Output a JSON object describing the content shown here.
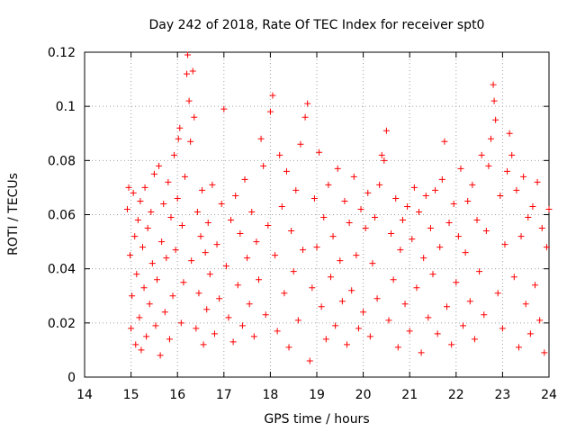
{
  "chart_data": {
    "type": "scatter",
    "title": "Day 242 of 2018, Rate Of TEC Index for receiver spt0",
    "xlabel": "GPS time / hours",
    "ylabel": "ROTI / TECUs",
    "xlim": [
      14,
      24
    ],
    "ylim": [
      0,
      0.12
    ],
    "x_ticks": [
      14,
      15,
      16,
      17,
      18,
      19,
      20,
      21,
      22,
      23,
      24
    ],
    "x_tick_labels": [
      "14",
      "15",
      "16",
      "17",
      "18",
      "19",
      "20",
      "21",
      "22",
      "23",
      "24"
    ],
    "y_ticks": [
      0,
      0.02,
      0.04,
      0.06,
      0.08,
      0.1,
      0.12
    ],
    "y_tick_labels": [
      "0",
      "0.02",
      "0.04",
      "0.06",
      "0.08",
      "0.1",
      "0.12"
    ],
    "grid": true,
    "marker": "+",
    "series": [
      {
        "name": "ROTI",
        "color": "#ff0000",
        "points": [
          [
            14.92,
            0.062
          ],
          [
            14.95,
            0.07
          ],
          [
            14.98,
            0.045
          ],
          [
            15.0,
            0.018
          ],
          [
            15.02,
            0.03
          ],
          [
            15.05,
            0.068
          ],
          [
            15.08,
            0.052
          ],
          [
            15.1,
            0.012
          ],
          [
            15.12,
            0.038
          ],
          [
            15.15,
            0.058
          ],
          [
            15.18,
            0.022
          ],
          [
            15.2,
            0.065
          ],
          [
            15.22,
            0.01
          ],
          [
            15.25,
            0.048
          ],
          [
            15.28,
            0.033
          ],
          [
            15.3,
            0.07
          ],
          [
            15.33,
            0.015
          ],
          [
            15.36,
            0.055
          ],
          [
            15.4,
            0.027
          ],
          [
            15.43,
            0.061
          ],
          [
            15.46,
            0.042
          ],
          [
            15.5,
            0.075
          ],
          [
            15.53,
            0.019
          ],
          [
            15.56,
            0.036
          ],
          [
            15.6,
            0.078
          ],
          [
            15.63,
            0.008
          ],
          [
            15.66,
            0.05
          ],
          [
            15.7,
            0.064
          ],
          [
            15.73,
            0.024
          ],
          [
            15.76,
            0.044
          ],
          [
            15.8,
            0.072
          ],
          [
            15.83,
            0.014
          ],
          [
            15.86,
            0.059
          ],
          [
            15.9,
            0.03
          ],
          [
            15.93,
            0.082
          ],
          [
            15.96,
            0.047
          ],
          [
            16.0,
            0.066
          ],
          [
            16.02,
            0.088
          ],
          [
            16.05,
            0.092
          ],
          [
            16.08,
            0.02
          ],
          [
            16.1,
            0.056
          ],
          [
            16.13,
            0.035
          ],
          [
            16.16,
            0.074
          ],
          [
            16.2,
            0.112
          ],
          [
            16.22,
            0.119
          ],
          [
            16.25,
            0.102
          ],
          [
            16.28,
            0.087
          ],
          [
            16.3,
            0.043
          ],
          [
            16.33,
            0.113
          ],
          [
            16.36,
            0.096
          ],
          [
            16.4,
            0.018
          ],
          [
            16.43,
            0.061
          ],
          [
            16.46,
            0.031
          ],
          [
            16.5,
            0.052
          ],
          [
            16.53,
            0.069
          ],
          [
            16.56,
            0.012
          ],
          [
            16.6,
            0.046
          ],
          [
            16.63,
            0.025
          ],
          [
            16.66,
            0.057
          ],
          [
            16.7,
            0.038
          ],
          [
            16.75,
            0.071
          ],
          [
            16.8,
            0.016
          ],
          [
            16.85,
            0.049
          ],
          [
            16.9,
            0.029
          ],
          [
            16.95,
            0.064
          ],
          [
            17.0,
            0.099
          ],
          [
            17.05,
            0.041
          ],
          [
            17.1,
            0.022
          ],
          [
            17.15,
            0.058
          ],
          [
            17.2,
            0.013
          ],
          [
            17.25,
            0.067
          ],
          [
            17.3,
            0.034
          ],
          [
            17.35,
            0.053
          ],
          [
            17.4,
            0.019
          ],
          [
            17.45,
            0.073
          ],
          [
            17.5,
            0.044
          ],
          [
            17.55,
            0.027
          ],
          [
            17.6,
            0.061
          ],
          [
            17.65,
            0.015
          ],
          [
            17.7,
            0.05
          ],
          [
            17.75,
            0.036
          ],
          [
            17.8,
            0.088
          ],
          [
            17.85,
            0.078
          ],
          [
            17.9,
            0.023
          ],
          [
            17.95,
            0.056
          ],
          [
            18.0,
            0.098
          ],
          [
            18.05,
            0.104
          ],
          [
            18.1,
            0.045
          ],
          [
            18.15,
            0.017
          ],
          [
            18.2,
            0.082
          ],
          [
            18.25,
            0.063
          ],
          [
            18.3,
            0.031
          ],
          [
            18.35,
            0.076
          ],
          [
            18.4,
            0.011
          ],
          [
            18.45,
            0.054
          ],
          [
            18.5,
            0.039
          ],
          [
            18.55,
            0.069
          ],
          [
            18.6,
            0.021
          ],
          [
            18.65,
            0.086
          ],
          [
            18.7,
            0.047
          ],
          [
            18.75,
            0.096
          ],
          [
            18.8,
            0.101
          ],
          [
            18.85,
            0.006
          ],
          [
            18.9,
            0.033
          ],
          [
            18.95,
            0.066
          ],
          [
            19.0,
            0.048
          ],
          [
            19.05,
            0.083
          ],
          [
            19.1,
            0.026
          ],
          [
            19.15,
            0.059
          ],
          [
            19.2,
            0.014
          ],
          [
            19.25,
            0.071
          ],
          [
            19.3,
            0.037
          ],
          [
            19.35,
            0.052
          ],
          [
            19.4,
            0.019
          ],
          [
            19.45,
            0.077
          ],
          [
            19.5,
            0.043
          ],
          [
            19.55,
            0.028
          ],
          [
            19.6,
            0.065
          ],
          [
            19.65,
            0.012
          ],
          [
            19.7,
            0.057
          ],
          [
            19.75,
            0.032
          ],
          [
            19.8,
            0.074
          ],
          [
            19.85,
            0.045
          ],
          [
            19.9,
            0.018
          ],
          [
            19.95,
            0.062
          ],
          [
            20.0,
            0.024
          ],
          [
            20.05,
            0.055
          ],
          [
            20.1,
            0.068
          ],
          [
            20.15,
            0.015
          ],
          [
            20.2,
            0.042
          ],
          [
            20.25,
            0.059
          ],
          [
            20.3,
            0.029
          ],
          [
            20.35,
            0.071
          ],
          [
            20.4,
            0.082
          ],
          [
            20.45,
            0.08
          ],
          [
            20.5,
            0.091
          ],
          [
            20.55,
            0.021
          ],
          [
            20.6,
            0.053
          ],
          [
            20.65,
            0.036
          ],
          [
            20.7,
            0.066
          ],
          [
            20.75,
            0.011
          ],
          [
            20.8,
            0.047
          ],
          [
            20.85,
            0.058
          ],
          [
            20.9,
            0.027
          ],
          [
            20.95,
            0.063
          ],
          [
            21.0,
            0.017
          ],
          [
            21.05,
            0.051
          ],
          [
            21.1,
            0.07
          ],
          [
            21.15,
            0.033
          ],
          [
            21.2,
            0.061
          ],
          [
            21.25,
            0.009
          ],
          [
            21.3,
            0.044
          ],
          [
            21.35,
            0.067
          ],
          [
            21.4,
            0.022
          ],
          [
            21.45,
            0.055
          ],
          [
            21.5,
            0.038
          ],
          [
            21.55,
            0.069
          ],
          [
            21.6,
            0.016
          ],
          [
            21.65,
            0.048
          ],
          [
            21.7,
            0.073
          ],
          [
            21.75,
            0.087
          ],
          [
            21.8,
            0.026
          ],
          [
            21.85,
            0.057
          ],
          [
            21.9,
            0.012
          ],
          [
            21.95,
            0.064
          ],
          [
            22.0,
            0.035
          ],
          [
            22.05,
            0.052
          ],
          [
            22.1,
            0.077
          ],
          [
            22.15,
            0.019
          ],
          [
            22.2,
            0.046
          ],
          [
            22.25,
            0.065
          ],
          [
            22.3,
            0.028
          ],
          [
            22.35,
            0.071
          ],
          [
            22.4,
            0.014
          ],
          [
            22.45,
            0.058
          ],
          [
            22.5,
            0.039
          ],
          [
            22.55,
            0.082
          ],
          [
            22.6,
            0.023
          ],
          [
            22.65,
            0.054
          ],
          [
            22.7,
            0.078
          ],
          [
            22.75,
            0.088
          ],
          [
            22.8,
            0.108
          ],
          [
            22.82,
            0.102
          ],
          [
            22.85,
            0.095
          ],
          [
            22.9,
            0.031
          ],
          [
            22.95,
            0.067
          ],
          [
            23.0,
            0.018
          ],
          [
            23.05,
            0.049
          ],
          [
            23.1,
            0.076
          ],
          [
            23.15,
            0.09
          ],
          [
            23.2,
            0.082
          ],
          [
            23.25,
            0.037
          ],
          [
            23.3,
            0.069
          ],
          [
            23.35,
            0.011
          ],
          [
            23.4,
            0.052
          ],
          [
            23.45,
            0.074
          ],
          [
            23.5,
            0.027
          ],
          [
            23.55,
            0.059
          ],
          [
            23.6,
            0.016
          ],
          [
            23.65,
            0.063
          ],
          [
            23.7,
            0.034
          ],
          [
            23.75,
            0.072
          ],
          [
            23.8,
            0.021
          ],
          [
            23.85,
            0.055
          ],
          [
            23.9,
            0.009
          ],
          [
            23.95,
            0.048
          ],
          [
            24.0,
            0.062
          ]
        ]
      }
    ]
  }
}
